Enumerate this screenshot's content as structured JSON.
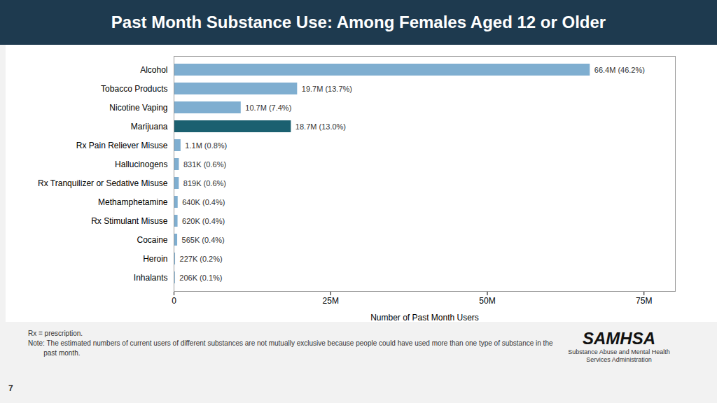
{
  "chart_data": {
    "type": "bar",
    "orientation": "horizontal",
    "title": "Past Month Substance Use: Among Females Aged 12 or Older",
    "categories": [
      "Alcohol",
      "Tobacco Products",
      "Nicotine Vaping",
      "Marijuana",
      "Rx Pain Reliever Misuse",
      "Hallucinogens",
      "Rx Tranquilizer or Sedative Misuse",
      "Methamphetamine",
      "Rx Stimulant Misuse",
      "Cocaine",
      "Heroin",
      "Inhalants"
    ],
    "values": [
      66.4,
      19.7,
      10.7,
      18.7,
      1.1,
      0.831,
      0.819,
      0.64,
      0.62,
      0.565,
      0.227,
      0.206
    ],
    "value_labels": [
      "66.4M (46.2%)",
      "19.7M (13.7%)",
      "10.7M (7.4%)",
      "18.7M (13.0%)",
      "1.1M (0.8%)",
      "831K (0.6%)",
      "819K (0.6%)",
      "640K (0.4%)",
      "620K (0.4%)",
      "565K (0.4%)",
      "227K (0.2%)",
      "206K (0.1%)"
    ],
    "data_labels": true,
    "colors": [
      "#7faed0",
      "#7faed0",
      "#7faed0",
      "#1b6070",
      "#7faed0",
      "#7faed0",
      "#7faed0",
      "#7faed0",
      "#7faed0",
      "#7faed0",
      "#7faed0",
      "#7faed0"
    ],
    "xlabel": "Number of Past Month Users",
    "xlim": [
      0,
      80
    ],
    "xticks": [
      0,
      {
        "value": 25,
        "label": "25M"
      },
      {
        "value": 50,
        "label": "50M"
      },
      {
        "value": 75,
        "label": "75M"
      }
    ],
    "grid": false,
    "annotations": [
      "Rx = prescription.",
      "Note: The estimated numbers of current users of different substances are not mutually exclusive because people could have used more than one type of substance in the",
      "        past month.",
      "7",
      "SAMHSA",
      "Substance Abuse and Mental Health\nServices Administration"
    ]
  }
}
